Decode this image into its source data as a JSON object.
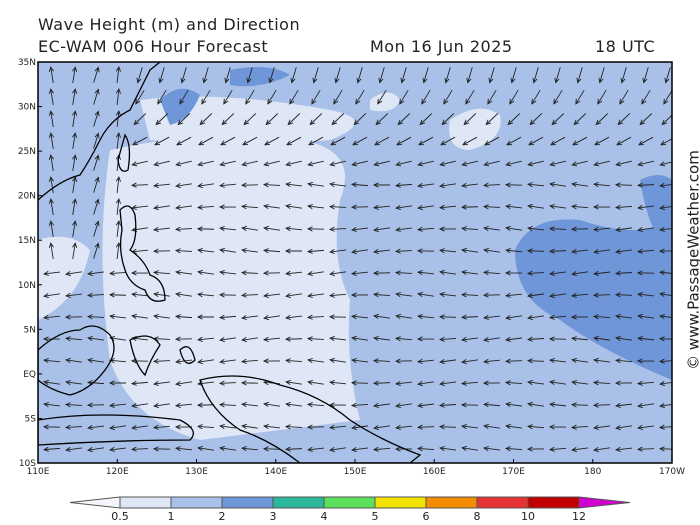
{
  "header": {
    "title": "Wave Height (m) and Direction",
    "model": "EC-WAM 006 Hour Forecast",
    "date": "Mon 16 Jun 2025",
    "time": "18 UTC"
  },
  "map": {
    "lat_labels": [
      "35N",
      "30N",
      "25N",
      "20N",
      "15N",
      "10N",
      "5N",
      "EQ",
      "5S",
      "10S"
    ],
    "lon_labels": [
      "110E",
      "120E",
      "130E",
      "140E",
      "150E",
      "160E",
      "170E",
      "180",
      "170W"
    ]
  },
  "colorbar": {
    "levels": [
      0.5,
      1,
      2,
      3,
      4,
      5,
      6,
      8,
      10,
      12
    ],
    "colors": [
      "#f4f6fc",
      "#dfe7f7",
      "#a9c1e8",
      "#6f96d8",
      "#2cb89a",
      "#5ce05c",
      "#f2e200",
      "#f28c00",
      "#e63232",
      "#c00000",
      "#d000d0"
    ]
  },
  "watermark": "© www.PassageWeather.com"
}
